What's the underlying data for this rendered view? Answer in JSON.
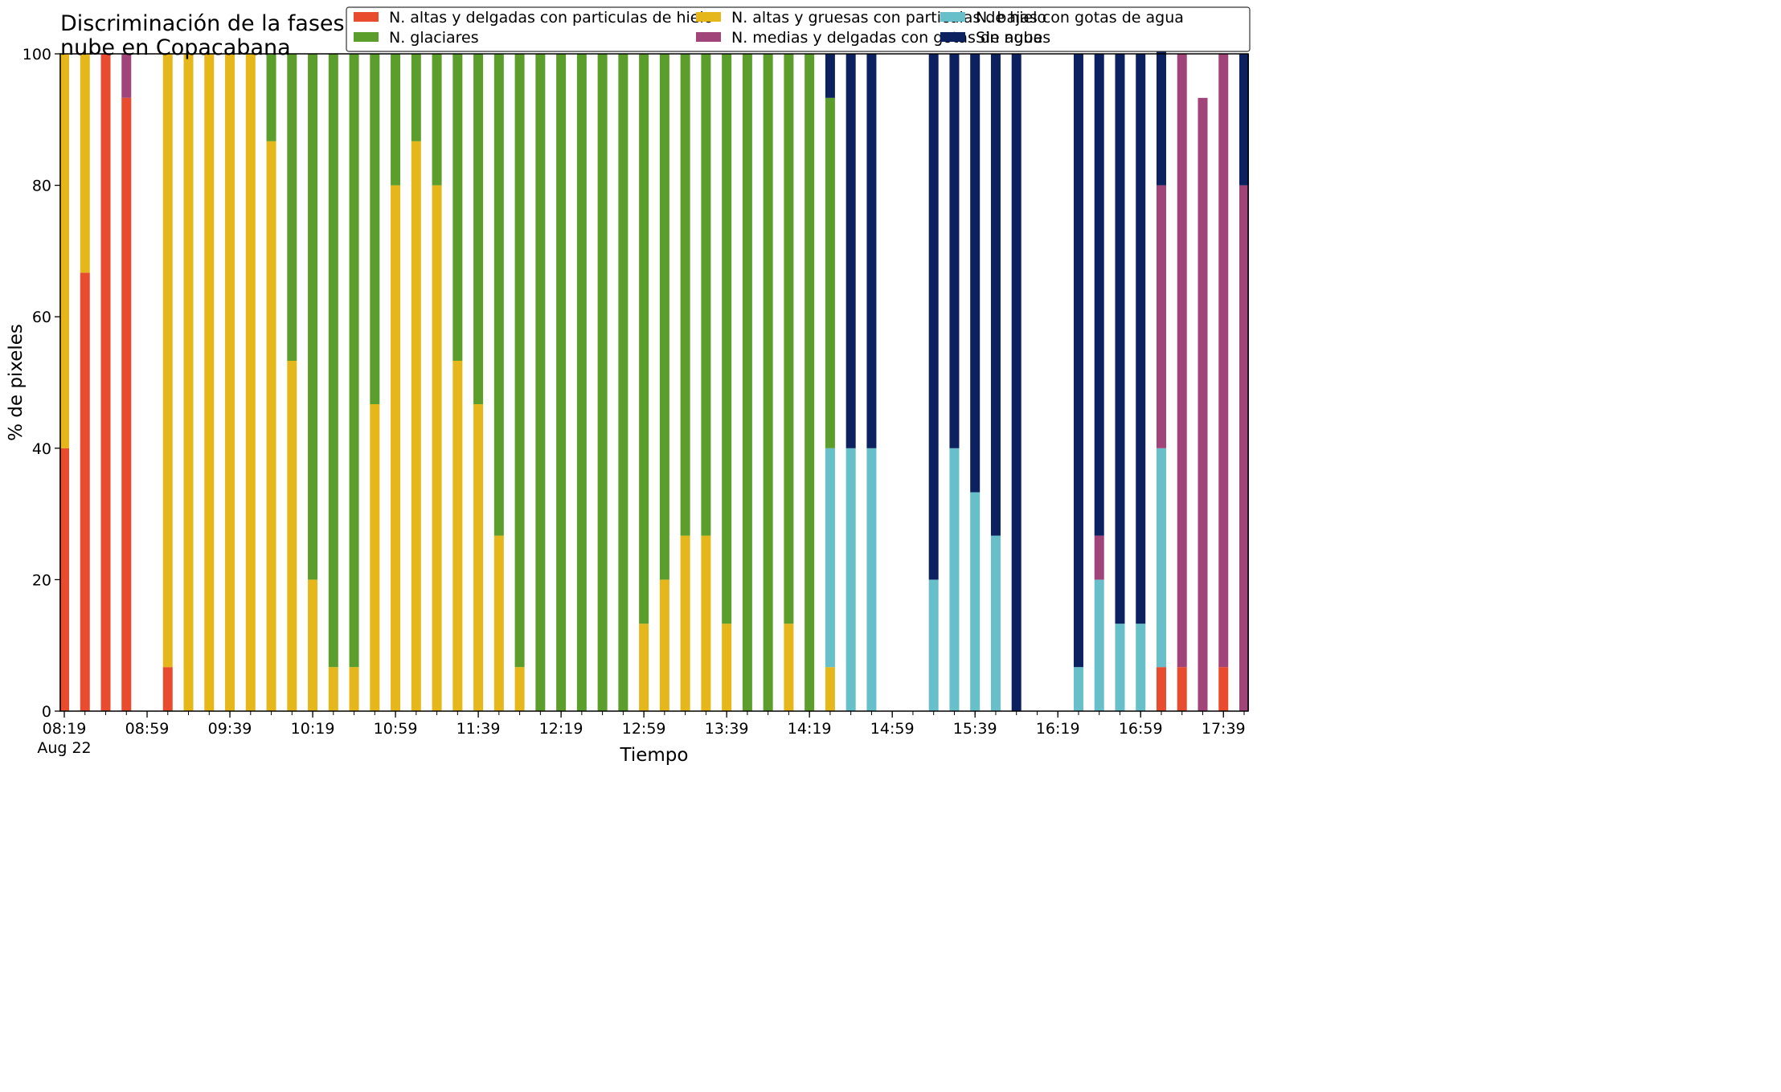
{
  "chart_data": {
    "type": "bar",
    "stacked": true,
    "title": "Discriminación de la fases de la\nnube en Copacabana",
    "xlabel": "Tiempo",
    "ylabel": "% de pixeles",
    "ylim": [
      0,
      100
    ],
    "y_ticks": [
      0,
      20,
      40,
      60,
      80,
      100
    ],
    "x_tick_labels": [
      "08:19",
      "08:59",
      "09:39",
      "10:19",
      "10:59",
      "11:39",
      "12:19",
      "12:59",
      "13:39",
      "14:19",
      "14:59",
      "15:39",
      "16:19",
      "16:59",
      "17:39"
    ],
    "x_date_label": "Aug 22",
    "x_start": "08:19",
    "x_step_minutes": 10,
    "x_end": "17:49",
    "legend_position": "top-right",
    "categories": [
      "08:19",
      "08:29",
      "08:39",
      "08:49",
      "08:59",
      "09:09",
      "09:19",
      "09:29",
      "09:39",
      "09:49",
      "09:59",
      "10:09",
      "10:19",
      "10:29",
      "10:39",
      "10:49",
      "10:59",
      "11:09",
      "11:19",
      "11:29",
      "11:39",
      "11:49",
      "11:59",
      "12:09",
      "12:19",
      "12:29",
      "12:39",
      "12:49",
      "12:59",
      "13:09",
      "13:19",
      "13:29",
      "13:39",
      "13:49",
      "13:59",
      "14:09",
      "14:19",
      "14:29",
      "14:39",
      "14:49",
      "14:59",
      "15:09",
      "15:19",
      "15:29",
      "15:39",
      "15:49",
      "15:59",
      "16:09",
      "16:19",
      "16:29",
      "16:39",
      "16:49",
      "16:59",
      "17:09",
      "17:19",
      "17:29",
      "17:39",
      "17:49"
    ],
    "series": [
      {
        "name": "N. altas y delgadas con particulas de hielo",
        "color": "#e94b2f",
        "values": [
          40,
          66.7,
          100,
          93.3,
          0,
          6.7,
          0,
          0,
          0,
          0,
          0,
          0,
          0,
          0,
          0,
          0,
          0,
          0,
          0,
          0,
          0,
          0,
          0,
          0,
          0,
          0,
          0,
          0,
          0,
          0,
          0,
          0,
          0,
          0,
          0,
          0,
          0,
          0,
          0,
          0,
          0,
          0,
          0,
          0,
          0,
          0,
          0,
          0,
          0,
          0,
          0,
          0,
          0,
          6.7,
          6.7,
          0,
          6.7,
          0
        ]
      },
      {
        "name": "N. altas y gruesas con particulas de hielo",
        "color": "#e5b71a",
        "values": [
          60,
          33.3,
          0,
          0,
          0,
          93.3,
          100,
          100,
          100,
          100,
          86.7,
          53.3,
          20,
          6.7,
          6.7,
          46.7,
          80,
          86.7,
          80,
          53.3,
          46.7,
          26.7,
          6.7,
          0,
          0,
          0,
          0,
          0,
          13.3,
          20,
          26.7,
          26.7,
          13.3,
          0,
          0,
          13.3,
          0,
          6.7,
          0,
          0,
          0,
          0,
          0,
          0,
          0,
          0,
          0,
          0,
          0,
          0,
          0,
          0,
          0,
          0,
          0,
          0,
          0,
          0
        ]
      },
      {
        "name": "N. bajas con gotas de agua",
        "color": "#66bfc9",
        "values": [
          0,
          0,
          0,
          0,
          0,
          0,
          0,
          0,
          0,
          0,
          0,
          0,
          0,
          0,
          0,
          0,
          0,
          0,
          0,
          0,
          0,
          0,
          0,
          0,
          0,
          0,
          0,
          0,
          0,
          0,
          0,
          0,
          0,
          0,
          0,
          0,
          0,
          33.3,
          40,
          40,
          0,
          0,
          20,
          40,
          33.3,
          26.7,
          0,
          0,
          0,
          6.7,
          20,
          13.3,
          13.3,
          33.3,
          0,
          0,
          0,
          0
        ]
      },
      {
        "name": "N. glaciares",
        "color": "#5c9e2c",
        "values": [
          0,
          0,
          0,
          0,
          0,
          0,
          0,
          0,
          0,
          0,
          13.3,
          46.7,
          80,
          93.3,
          93.3,
          53.3,
          20,
          13.3,
          20,
          46.7,
          53.3,
          73.3,
          93.3,
          100,
          100,
          100,
          100,
          100,
          86.7,
          80,
          73.3,
          73.3,
          86.7,
          100,
          100,
          86.7,
          100,
          53.3,
          0,
          0,
          0,
          0,
          0,
          0,
          0,
          0,
          0,
          0,
          0,
          0,
          0,
          0,
          0,
          0,
          0,
          0,
          0,
          0
        ]
      },
      {
        "name": "N. medias y delgadas con gotas de agua",
        "color": "#a0447a",
        "values": [
          0,
          0,
          0,
          6.7,
          0,
          0,
          0,
          0,
          0,
          0,
          0,
          0,
          0,
          0,
          0,
          0,
          0,
          0,
          0,
          0,
          0,
          0,
          0,
          0,
          0,
          0,
          0,
          0,
          0,
          0,
          0,
          0,
          0,
          0,
          0,
          0,
          0,
          0,
          0,
          0,
          0,
          0,
          0,
          0,
          0,
          0,
          0,
          0,
          0,
          0,
          6.7,
          0,
          0,
          40,
          93.3,
          93.3,
          93.3,
          80
        ]
      },
      {
        "name": "Sin nubes",
        "color": "#0b2160",
        "values": [
          0,
          0,
          0,
          0,
          0,
          0,
          0,
          0,
          0,
          0,
          0,
          0,
          0,
          0,
          0,
          0,
          0,
          0,
          0,
          0,
          0,
          0,
          0,
          0,
          0,
          0,
          0,
          0,
          0,
          0,
          0,
          0,
          0,
          0,
          0,
          0,
          0,
          6.7,
          60,
          60,
          0,
          0,
          80,
          60,
          66.7,
          73.3,
          100,
          0,
          0,
          93.3,
          73.3,
          86.7,
          86.7,
          26.7,
          0,
          0,
          0,
          20
        ]
      }
    ]
  }
}
